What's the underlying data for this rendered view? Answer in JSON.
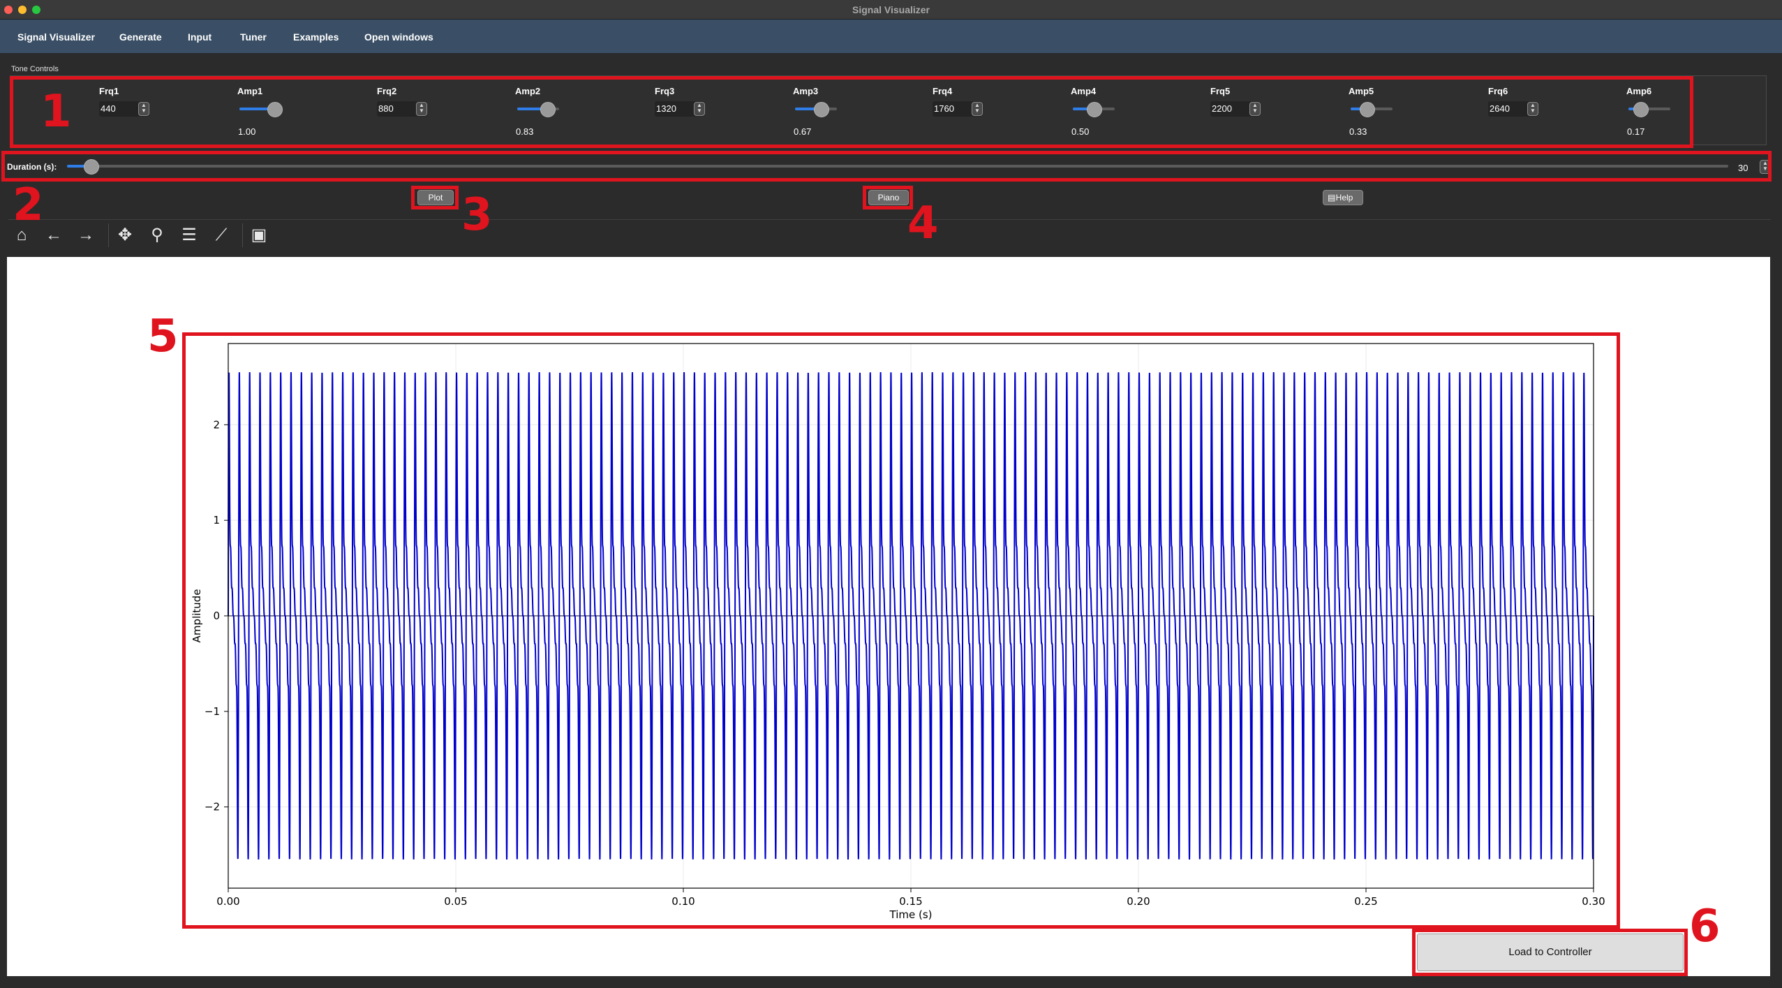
{
  "window": {
    "title": "Signal Visualizer"
  },
  "menu": [
    "Signal Visualizer",
    "Generate",
    "Input",
    "Tuner",
    "Examples",
    "Open windows"
  ],
  "tone_controls": {
    "section_label": "Tone Controls",
    "frequencies": [
      {
        "label": "Frq1",
        "value": "440"
      },
      {
        "label": "Frq2",
        "value": "880"
      },
      {
        "label": "Frq3",
        "value": "1320"
      },
      {
        "label": "Frq4",
        "value": "1760"
      },
      {
        "label": "Frq5",
        "value": "2200"
      },
      {
        "label": "Frq6",
        "value": "2640"
      }
    ],
    "amplitudes": [
      {
        "label": "Amp1",
        "value": "1.00",
        "level": 1.0
      },
      {
        "label": "Amp2",
        "value": "0.83",
        "level": 0.83
      },
      {
        "label": "Amp3",
        "value": "0.67",
        "level": 0.67
      },
      {
        "label": "Amp4",
        "value": "0.50",
        "level": 0.5
      },
      {
        "label": "Amp5",
        "value": "0.33",
        "level": 0.33
      },
      {
        "label": "Amp6",
        "value": "0.17",
        "level": 0.17
      }
    ]
  },
  "duration": {
    "label": "Duration (s):",
    "value": "30",
    "level": 0.01
  },
  "buttons": {
    "plot": "Plot",
    "piano": "Piano",
    "help": "Help",
    "load": "Load to Controller"
  },
  "toolbar_icons": [
    "home-icon",
    "back-arrow-icon",
    "forward-arrow-icon",
    "pan-icon",
    "zoom-icon",
    "configure-subplots-icon",
    "edit-axes-icon",
    "save-icon"
  ],
  "annotations": [
    "1",
    "2",
    "3",
    "4",
    "5",
    "6"
  ],
  "colors": {
    "annotation": "#e0141e",
    "signal": "#0000cc",
    "slider_fill": "#2f7de8",
    "menubar": "#3a4f66"
  },
  "chart_data": {
    "type": "line",
    "xlabel": "Time (s)",
    "ylabel": "Amplitude",
    "xlim": [
      0.0,
      0.3
    ],
    "ylim": [
      -2.85,
      2.85
    ],
    "x_ticks": [
      "0.00",
      "0.05",
      "0.10",
      "0.15",
      "0.20",
      "0.25",
      "0.30"
    ],
    "y_ticks": [
      "−2",
      "−1",
      "0",
      "1",
      "2"
    ],
    "grid": true,
    "series": [
      {
        "components": [
          {
            "frequency": 440,
            "amplitude": 1.0
          },
          {
            "frequency": 880,
            "amplitude": 0.83
          },
          {
            "frequency": 1320,
            "amplitude": 0.67
          },
          {
            "frequency": 1760,
            "amplitude": 0.5
          },
          {
            "frequency": 2200,
            "amplitude": 0.33
          },
          {
            "frequency": 2640,
            "amplitude": 0.17
          }
        ],
        "peak": 2.55
      }
    ]
  }
}
